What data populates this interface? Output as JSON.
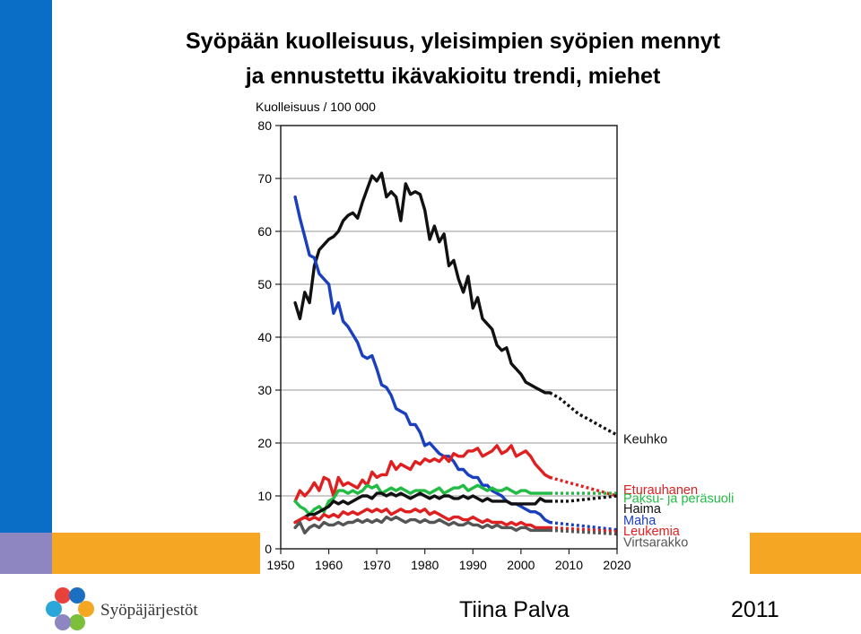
{
  "slide": {
    "title_line1": "Syöpään kuolleisuus, yleisimpien syöpien mennyt",
    "title_line2": "ja ennustettu ikävakioitu trendi, miehet",
    "organization": "Syöpäjärjestöt",
    "author": "Tiina Palva",
    "year": "2011"
  },
  "colors": {
    "accent_blue": "#0a6ec6",
    "accent_orange": "#f5a623",
    "accent_lavender": "#8d86c1"
  },
  "chart_data": {
    "type": "line",
    "ylabel": "Kuolleisuus / 100 000",
    "xlim": [
      1950,
      2020
    ],
    "ylim": [
      0,
      80
    ],
    "x_ticks": [
      1950,
      1960,
      1970,
      1980,
      1990,
      2000,
      2010,
      2020
    ],
    "y_ticks": [
      0,
      10,
      20,
      30,
      40,
      50,
      60,
      70,
      80
    ],
    "grid": "horizontal",
    "legend": "right, labels at line ends",
    "series": [
      {
        "name": "Keuhko",
        "color": "#111111",
        "x": [
          1953,
          1954,
          1955,
          1956,
          1957,
          1958,
          1959,
          1960,
          1961,
          1962,
          1963,
          1964,
          1965,
          1966,
          1967,
          1968,
          1969,
          1970,
          1971,
          1972,
          1973,
          1974,
          1975,
          1976,
          1977,
          1978,
          1979,
          1980,
          1981,
          1982,
          1983,
          1984,
          1985,
          1986,
          1987,
          1988,
          1989,
          1990,
          1991,
          1992,
          1993,
          1994,
          1995,
          1996,
          1997,
          1998,
          1999,
          2000,
          2001,
          2002,
          2003,
          2004,
          2005,
          2006
        ],
        "y": [
          46.5,
          43.5,
          48.5,
          46.5,
          53.5,
          56.5,
          57.5,
          58.5,
          59,
          60,
          62,
          63,
          63.5,
          62.5,
          65.5,
          68,
          70.5,
          69.5,
          71,
          66.5,
          67.5,
          66.5,
          62,
          69,
          67,
          67.5,
          67,
          64,
          58.5,
          61,
          58,
          59.5,
          53.5,
          54.5,
          51,
          48.5,
          51.5,
          45.5,
          47.5,
          43.5,
          42.5,
          41.5,
          38.5,
          37.5,
          38,
          35,
          34,
          33,
          31.5,
          31,
          30.5,
          30,
          29.5,
          29.5
        ],
        "projection": {
          "x": [
            2006,
            2008,
            2010,
            2012,
            2014,
            2016,
            2018,
            2020
          ],
          "y": [
            29.5,
            28.5,
            27,
            25.5,
            24.5,
            23.5,
            22.5,
            21.5
          ]
        }
      },
      {
        "name": "Maha",
        "color": "#1a3fbf",
        "x": [
          1953,
          1954,
          1955,
          1956,
          1957,
          1958,
          1959,
          1960,
          1961,
          1962,
          1963,
          1964,
          1965,
          1966,
          1967,
          1968,
          1969,
          1970,
          1971,
          1972,
          1973,
          1974,
          1975,
          1976,
          1977,
          1978,
          1979,
          1980,
          1981,
          1982,
          1983,
          1984,
          1985,
          1986,
          1987,
          1988,
          1989,
          1990,
          1991,
          1992,
          1993,
          1994,
          1995,
          1996,
          1997,
          1998,
          1999,
          2000,
          2001,
          2002,
          2003,
          2004,
          2005,
          2006
        ],
        "y": [
          66.5,
          62.5,
          59,
          55.5,
          55,
          52,
          51,
          50,
          44.5,
          46.5,
          43,
          42,
          40.5,
          39,
          36.5,
          36,
          36.5,
          34,
          31,
          30.5,
          29,
          26.5,
          26,
          25.5,
          23.5,
          23.5,
          22,
          19.5,
          20,
          19,
          18,
          17.5,
          17.5,
          16.5,
          15,
          15,
          14,
          13.5,
          13.5,
          12,
          12,
          11,
          10.5,
          10,
          9,
          8.5,
          8.5,
          8,
          7.5,
          7,
          7,
          6.5,
          5.5,
          5
        ],
        "projection": {
          "x": [
            2006,
            2008,
            2010,
            2012,
            2014,
            2016,
            2018,
            2020
          ],
          "y": [
            5,
            4.8,
            4.6,
            4.4,
            4.2,
            4,
            3.8,
            3.6
          ]
        }
      },
      {
        "name": "Eturauhanen",
        "color": "#e02020",
        "x": [
          1953,
          1954,
          1955,
          1956,
          1957,
          1958,
          1959,
          1960,
          1961,
          1962,
          1963,
          1964,
          1965,
          1966,
          1967,
          1968,
          1969,
          1970,
          1971,
          1972,
          1973,
          1974,
          1975,
          1976,
          1977,
          1978,
          1979,
          1980,
          1981,
          1982,
          1983,
          1984,
          1985,
          1986,
          1987,
          1988,
          1989,
          1990,
          1991,
          1992,
          1993,
          1994,
          1995,
          1996,
          1997,
          1998,
          1999,
          2000,
          2001,
          2002,
          2003,
          2004,
          2005,
          2006
        ],
        "y": [
          9,
          11,
          10,
          11,
          12.5,
          11,
          13.5,
          13,
          10,
          13.5,
          12,
          12.5,
          12,
          11.5,
          13,
          12,
          14.5,
          13.5,
          14,
          14,
          16.5,
          15,
          16,
          15.5,
          15,
          16.5,
          16,
          17,
          16.5,
          17,
          16.5,
          17.5,
          16.5,
          18,
          17.5,
          17.5,
          18.5,
          18.5,
          19,
          17.5,
          18,
          18.5,
          19.5,
          18,
          18.5,
          19.5,
          17.5,
          18,
          18.5,
          17.5,
          16,
          15,
          14,
          13.5
        ],
        "projection": {
          "x": [
            2006,
            2008,
            2010,
            2012,
            2014,
            2016,
            2018,
            2020
          ],
          "y": [
            13.5,
            13,
            12.5,
            12,
            11.5,
            11,
            10.5,
            10
          ]
        }
      },
      {
        "name": "Paksu- ja peräsuoli",
        "color": "#22bb44",
        "x": [
          1953,
          1954,
          1955,
          1956,
          1957,
          1958,
          1959,
          1960,
          1961,
          1962,
          1963,
          1964,
          1965,
          1966,
          1967,
          1968,
          1969,
          1970,
          1971,
          1972,
          1973,
          1974,
          1975,
          1976,
          1977,
          1978,
          1979,
          1980,
          1981,
          1982,
          1983,
          1984,
          1985,
          1986,
          1987,
          1988,
          1989,
          1990,
          1991,
          1992,
          1993,
          1994,
          1995,
          1996,
          1997,
          1998,
          1999,
          2000,
          2001,
          2002,
          2003,
          2004,
          2005,
          2006
        ],
        "y": [
          9,
          8,
          7.5,
          6.5,
          7.5,
          8,
          7,
          9,
          9.5,
          11,
          11,
          10.5,
          11,
          10.5,
          11,
          12,
          11.5,
          12,
          10.5,
          11,
          11.5,
          11,
          11.5,
          11,
          10.5,
          11,
          11,
          11,
          10.5,
          11,
          11.5,
          10.5,
          11,
          11.5,
          11.5,
          12,
          11,
          11.5,
          12,
          11.5,
          11,
          11.5,
          11,
          11,
          11.5,
          11,
          10.5,
          11,
          11,
          10.5,
          10.5,
          10.5,
          10.5,
          10.5
        ],
        "projection": {
          "x": [
            2006,
            2008,
            2010,
            2012,
            2014,
            2016,
            2018,
            2020
          ],
          "y": [
            10.5,
            10.5,
            10.5,
            10.5,
            10.5,
            10.5,
            10.5,
            10.5
          ]
        }
      },
      {
        "name": "Haima",
        "color": "#111111",
        "x": [
          1953,
          1954,
          1955,
          1956,
          1957,
          1958,
          1959,
          1960,
          1961,
          1962,
          1963,
          1964,
          1965,
          1966,
          1967,
          1968,
          1969,
          1970,
          1971,
          1972,
          1973,
          1974,
          1975,
          1976,
          1977,
          1978,
          1979,
          1980,
          1981,
          1982,
          1983,
          1984,
          1985,
          1986,
          1987,
          1988,
          1989,
          1990,
          1991,
          1992,
          1993,
          1994,
          1995,
          1996,
          1997,
          1998,
          1999,
          2000,
          2001,
          2002,
          2003,
          2004,
          2005,
          2006
        ],
        "y": [
          5,
          5.5,
          6,
          6.5,
          6.5,
          7,
          7.5,
          8,
          9,
          8.5,
          9,
          8.5,
          9,
          9.5,
          10,
          10,
          9.5,
          10.5,
          10.5,
          10,
          10.5,
          10,
          10.5,
          10,
          9.5,
          10,
          10.5,
          10,
          9.5,
          10,
          9.5,
          10,
          10,
          9.5,
          9.5,
          10,
          9.5,
          10,
          9.5,
          9,
          9.5,
          9,
          9,
          9,
          9,
          8.5,
          8.5,
          8.5,
          8.5,
          8.5,
          8.5,
          9.5,
          9,
          9
        ],
        "projection": {
          "x": [
            2006,
            2008,
            2010,
            2012,
            2014,
            2016,
            2018,
            2020
          ],
          "y": [
            9,
            9,
            9,
            9.2,
            9.4,
            9.6,
            9.8,
            10
          ]
        }
      },
      {
        "name": "Leukemia",
        "color": "#e02020",
        "x": [
          1953,
          1954,
          1955,
          1956,
          1957,
          1958,
          1959,
          1960,
          1961,
          1962,
          1963,
          1964,
          1965,
          1966,
          1967,
          1968,
          1969,
          1970,
          1971,
          1972,
          1973,
          1974,
          1975,
          1976,
          1977,
          1978,
          1979,
          1980,
          1981,
          1982,
          1983,
          1984,
          1985,
          1986,
          1987,
          1988,
          1989,
          1990,
          1991,
          1992,
          1993,
          1994,
          1995,
          1996,
          1997,
          1998,
          1999,
          2000,
          2001,
          2002,
          2003,
          2004,
          2005,
          2006
        ],
        "y": [
          5,
          5.5,
          6,
          5.5,
          6,
          5.5,
          6.5,
          6,
          6.5,
          6,
          7,
          6.5,
          7,
          6.5,
          7,
          7.5,
          7,
          7.5,
          7,
          7.5,
          6.5,
          7,
          7.5,
          7,
          7,
          7.5,
          7,
          7.5,
          6.5,
          7,
          6.5,
          6,
          5.5,
          6,
          6,
          5.5,
          5.5,
          6,
          5.5,
          5,
          5.5,
          5,
          5,
          5,
          4.5,
          5,
          4.5,
          5,
          4.5,
          4.5,
          4,
          4,
          4,
          4
        ],
        "projection": {
          "x": [
            2006,
            2008,
            2010,
            2012,
            2014,
            2016,
            2018,
            2020
          ],
          "y": [
            4,
            3.9,
            3.8,
            3.7,
            3.6,
            3.5,
            3.4,
            3.3
          ]
        }
      },
      {
        "name": "Virtsarakko",
        "color": "#555555",
        "x": [
          1953,
          1954,
          1955,
          1956,
          1957,
          1958,
          1959,
          1960,
          1961,
          1962,
          1963,
          1964,
          1965,
          1966,
          1967,
          1968,
          1969,
          1970,
          1971,
          1972,
          1973,
          1974,
          1975,
          1976,
          1977,
          1978,
          1979,
          1980,
          1981,
          1982,
          1983,
          1984,
          1985,
          1986,
          1987,
          1988,
          1989,
          1990,
          1991,
          1992,
          1993,
          1994,
          1995,
          1996,
          1997,
          1998,
          1999,
          2000,
          2001,
          2002,
          2003,
          2004,
          2005,
          2006
        ],
        "y": [
          4,
          5,
          3,
          4,
          4.5,
          4,
          5,
          4.5,
          4.5,
          5,
          4.5,
          5,
          5,
          5.5,
          5,
          5.5,
          5,
          5.5,
          5,
          6,
          5.5,
          6,
          5.5,
          5,
          5.5,
          5.5,
          5,
          5.5,
          5,
          5,
          5.5,
          5,
          4.5,
          5,
          4.5,
          4.5,
          5,
          4.5,
          4.5,
          4,
          4.5,
          4,
          4.5,
          4,
          4,
          4,
          3.5,
          4,
          4,
          3.5,
          3.5,
          3.5,
          3.5,
          3.5
        ],
        "projection": {
          "x": [
            2006,
            2008,
            2010,
            2012,
            2014,
            2016,
            2018,
            2020
          ],
          "y": [
            3.5,
            3.4,
            3.3,
            3.2,
            3.1,
            3,
            2.9,
            2.8
          ]
        }
      }
    ],
    "legend_labels": [
      {
        "name": "Keuhko",
        "color": "#111111",
        "anchor_y": 20.8
      },
      {
        "name": "Eturauhanen",
        "color": "#e02020",
        "anchor_y": 11.2
      },
      {
        "name": "Paksu- ja peräsuoli",
        "color": "#22bb44",
        "anchor_y": 9.6
      },
      {
        "name": "Haima",
        "color": "#111111",
        "anchor_y": 7.6
      },
      {
        "name": "Maha",
        "color": "#1a3fbf",
        "anchor_y": 5.4
      },
      {
        "name": "Leukemia",
        "color": "#e02020",
        "anchor_y": 3.4
      },
      {
        "name": "Virtsarakko",
        "color": "#555555",
        "anchor_y": 1.3
      }
    ]
  }
}
